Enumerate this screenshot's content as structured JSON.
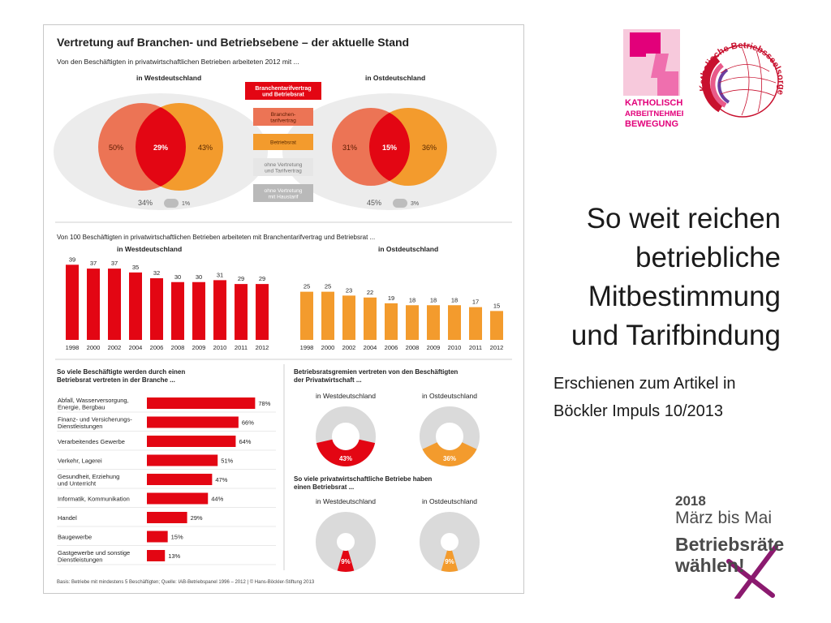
{
  "slide": {
    "title_lines": [
      "So weit reichen",
      "betriebliche",
      "Mitbestimmung",
      "und Tarifbindung"
    ],
    "subtitle_lines": [
      "Erschienen zum Artikel in",
      "Böckler Impuls 10/2013"
    ]
  },
  "logos": {
    "kab": {
      "letters": "KAB",
      "text_lines": [
        "KATHOLISCHE",
        "ARBEITNEHMER-",
        "BEWEGUNG"
      ],
      "color": "#e2007a"
    },
    "kbs": {
      "text": "Katholische Betriebsseelsorge",
      "color": "#c8102e"
    }
  },
  "badge": {
    "year": "2018",
    "period": "März bis Mai",
    "line1": "Betriebsräte",
    "line2": "wählen!",
    "accent": "#8b1a6f"
  },
  "colors": {
    "red": "#e30613",
    "salmon": "#ec7455",
    "orange": "#f39b2d",
    "grey_bg": "#ececec",
    "grey_pill": "#bdbdbd",
    "ring_grey": "#dadada"
  },
  "infographic": {
    "title": "Vertretung auf Branchen- und Betriebsebene – der aktuelle Stand",
    "subtitle": "Von den Beschäftigten in privatwirtschaftlichen Betrieben arbeiteten 2012 mit ...",
    "west_label": "in Westdeutschland",
    "east_label": "in Ostdeutschland",
    "legend": [
      {
        "label": "Branchentarifvertrag und Betriebsrat",
        "lines": [
          "Branchentarifvertrag",
          "und Betriebsrat"
        ],
        "color": "#e30613",
        "text_color": "#ffffff"
      },
      {
        "label": "Branchentarifvertrag",
        "lines": [
          "Branchen-",
          "tarifvertrag"
        ],
        "color": "#ec7455",
        "text_color": "#5a1a00"
      },
      {
        "label": "Betriebsrat",
        "lines": [
          "Betriebsrat"
        ],
        "color": "#f39b2d",
        "text_color": "#5a2a00"
      },
      {
        "label": "ohne Vertretung und Tarifvertrag",
        "lines": [
          "ohne Vertretung",
          "und Tarifvertrag"
        ],
        "color": "#e6e6e6",
        "text_color": "#777777"
      },
      {
        "label": "ohne Vertretung mit Haustarif",
        "lines": [
          "ohne Vertretung",
          "mit Haustarif"
        ],
        "color": "#b9b9b9",
        "text_color": "#ffffff"
      }
    ],
    "footer": "Basis: Betriebe mit mindestens 5 Beschäftigten; Quelle: IAB-Betriebspanel 1996 – 2012 | © Hans-Böckler-Stiftung 2013"
  },
  "chart_data": [
    {
      "type": "venn",
      "title": "in Westdeutschland",
      "branchentarifvertrag_only": "50%",
      "branchentarifvertrag_und_betriebsrat": "29%",
      "betriebsrat_only": "43%",
      "ohne_vertretung_und_tarifvertrag": "34%",
      "ohne_vertretung_mit_haustarif": "1%"
    },
    {
      "type": "venn",
      "title": "in Ostdeutschland",
      "branchentarifvertrag_only": "31%",
      "branchentarifvertrag_und_betriebsrat": "15%",
      "betriebsrat_only": "36%",
      "ohne_vertretung_und_tarifvertrag": "45%",
      "ohne_vertretung_mit_haustarif": "3%"
    },
    {
      "type": "bar",
      "section_title": "Von 100 Beschäftigten in privatwirtschaftlichen Betrieben arbeiteten mit Branchentarifvertrag und Betriebsrat ...",
      "title": "in Westdeutschland",
      "categories": [
        "1998",
        "2000",
        "2002",
        "2004",
        "2006",
        "2008",
        "2009",
        "2010",
        "2011",
        "2012"
      ],
      "values": [
        39,
        37,
        37,
        35,
        32,
        30,
        30,
        31,
        29,
        29
      ],
      "color": "#e30613",
      "ylim": [
        0,
        40
      ]
    },
    {
      "type": "bar",
      "title": "in Ostdeutschland",
      "categories": [
        "1998",
        "2000",
        "2002",
        "2004",
        "2006",
        "2008",
        "2009",
        "2010",
        "2011",
        "2012"
      ],
      "values": [
        25,
        25,
        23,
        22,
        19,
        18,
        18,
        18,
        17,
        15
      ],
      "color": "#f39b2d",
      "ylim": [
        0,
        40
      ]
    },
    {
      "type": "bar",
      "orientation": "horizontal",
      "title": "So viele Beschäftigte werden durch einen Betriebsrat vertreten in der Branche ...",
      "title_lines": [
        "So viele Beschäftigte werden durch einen",
        "Betriebsrat vertreten in der Branche ..."
      ],
      "categories": [
        "Abfall, Wasserversorgung, Energie, Bergbau",
        "Finanz- und Versicherungs-Dienstleistungen",
        "Verarbeitendes Gewerbe",
        "Verkehr, Lagerei",
        "Gesundheit, Erziehung und Unterricht",
        "Informatik, Kommunikation",
        "Handel",
        "Baugewerbe",
        "Gastgewerbe und sonstige Dienstleistungen"
      ],
      "category_lines": [
        [
          "Abfall, Wasserversorgung,",
          "Energie, Bergbau"
        ],
        [
          "Finanz- und Versicherungs-",
          "Dienstleistungen"
        ],
        [
          "Verarbeitendes Gewerbe"
        ],
        [
          "Verkehr, Lagerei"
        ],
        [
          "Gesundheit, Erziehung",
          "und Unterricht"
        ],
        [
          "Informatik, Kommunikation"
        ],
        [
          "Handel"
        ],
        [
          "Baugewerbe"
        ],
        [
          "Gastgewerbe und sonstige",
          "Dienstleistungen"
        ]
      ],
      "values": [
        78,
        66,
        64,
        51,
        47,
        44,
        29,
        15,
        13
      ],
      "unit": "%",
      "color": "#e30613",
      "xlim": [
        0,
        100
      ]
    },
    {
      "type": "pie",
      "group_title": "Betriebsratsgremien vertreten von den Beschäftigten der Privatwirtschaft ...",
      "group_title_lines": [
        "Betriebsratsgremien vertreten von den Beschäftigten",
        "der Privatwirtschaft ..."
      ],
      "title": "in Westdeutschland",
      "value": 43,
      "unit": "%",
      "color": "#e30613"
    },
    {
      "type": "pie",
      "title": "in Ostdeutschland",
      "value": 36,
      "unit": "%",
      "color": "#f39b2d"
    },
    {
      "type": "pie",
      "group_title": "So viele privatwirtschaftliche Betriebe haben einen Betriebsrat ...",
      "group_title_lines": [
        "So viele privatwirtschaftliche Betriebe haben",
        "einen Betriebsrat ..."
      ],
      "title": "in Westdeutschland",
      "value": 9,
      "unit": "%",
      "color": "#e30613"
    },
    {
      "type": "pie",
      "title": "in Ostdeutschland",
      "value": 9,
      "unit": "%",
      "color": "#f39b2d"
    }
  ]
}
